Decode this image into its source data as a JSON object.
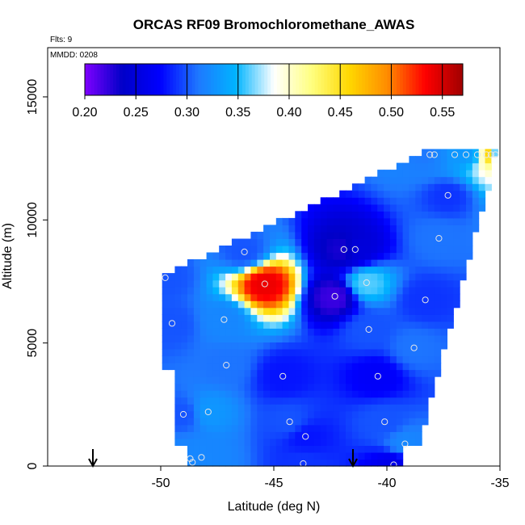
{
  "chart_data": {
    "type": "heatmap",
    "title": "ORCAS RF09 Bromochloromethane_AWAS",
    "xlabel": "Latitude (deg N)",
    "ylabel": "Altitude (m)",
    "subtitle_flights": "Flts: 9",
    "subtitle_date": "MMDD: 0208",
    "xlim": [
      -55,
      -35
    ],
    "ylim": [
      0,
      17000
    ],
    "xticks": [
      -50,
      -45,
      -40,
      -35
    ],
    "xtick_labels": [
      "-50",
      "-45",
      "-40",
      "-35"
    ],
    "yticks": [
      0,
      5000,
      10000,
      15000
    ],
    "ytick_labels": [
      "0",
      "5000",
      "10000",
      "15000"
    ],
    "colorbar": {
      "min": 0.2,
      "max": 0.57,
      "ticks": [
        0.2,
        0.25,
        0.3,
        0.35,
        0.4,
        0.45,
        0.5,
        0.55
      ],
      "tick_labels": [
        "0.20",
        "0.25",
        "0.30",
        "0.35",
        "0.40",
        "0.45",
        "0.50",
        "0.55"
      ],
      "colors": [
        "#7f00ff",
        "#0000c8",
        "#0000ff",
        "#1e78ff",
        "#00b4ff",
        "#ffffff",
        "#ffff80",
        "#ffd700",
        "#ff8c00",
        "#ff0000",
        "#a00000"
      ]
    },
    "grid": false,
    "sample_points": [
      {
        "x": -49.8,
        "y": 7650,
        "v": 0.3
      },
      {
        "x": -49.5,
        "y": 5800,
        "v": 0.3
      },
      {
        "x": -49.0,
        "y": 2100,
        "v": 0.3
      },
      {
        "x": -48.7,
        "y": 300,
        "v": 0.32
      },
      {
        "x": -48.6,
        "y": 150,
        "v": 0.32
      },
      {
        "x": -48.2,
        "y": 350,
        "v": 0.32
      },
      {
        "x": -47.9,
        "y": 2200,
        "v": 0.33
      },
      {
        "x": -47.1,
        "y": 4100,
        "v": 0.31
      },
      {
        "x": -47.2,
        "y": 5950,
        "v": 0.32
      },
      {
        "x": -46.3,
        "y": 8700,
        "v": 0.3
      },
      {
        "x": -45.4,
        "y": 7400,
        "v": 0.54
      },
      {
        "x": -44.6,
        "y": 3650,
        "v": 0.28
      },
      {
        "x": -44.3,
        "y": 1800,
        "v": 0.3
      },
      {
        "x": -43.7,
        "y": 100,
        "v": 0.29
      },
      {
        "x": -43.6,
        "y": 1200,
        "v": 0.28
      },
      {
        "x": -42.3,
        "y": 6900,
        "v": 0.22
      },
      {
        "x": -41.9,
        "y": 8800,
        "v": 0.23
      },
      {
        "x": -41.4,
        "y": 8800,
        "v": 0.25
      },
      {
        "x": -40.9,
        "y": 7450,
        "v": 0.36
      },
      {
        "x": -40.8,
        "y": 5550,
        "v": 0.3
      },
      {
        "x": -40.4,
        "y": 3650,
        "v": 0.27
      },
      {
        "x": -40.1,
        "y": 1800,
        "v": 0.3
      },
      {
        "x": -39.7,
        "y": 50,
        "v": 0.26
      },
      {
        "x": -39.2,
        "y": 900,
        "v": 0.32
      },
      {
        "x": -38.8,
        "y": 4800,
        "v": 0.31
      },
      {
        "x": -38.3,
        "y": 6750,
        "v": 0.29
      },
      {
        "x": -37.7,
        "y": 9250,
        "v": 0.31
      },
      {
        "x": -37.3,
        "y": 11000,
        "v": 0.29
      },
      {
        "x": -38.1,
        "y": 12650,
        "v": 0.31
      },
      {
        "x": -37.9,
        "y": 12650,
        "v": 0.32
      },
      {
        "x": -37.0,
        "y": 12650,
        "v": 0.33
      },
      {
        "x": -36.5,
        "y": 12650,
        "v": 0.33
      },
      {
        "x": -36.0,
        "y": 12650,
        "v": 0.34
      },
      {
        "x": -35.6,
        "y": 12650,
        "v": 0.45
      },
      {
        "x": -35.4,
        "y": 12650,
        "v": 0.5
      },
      {
        "x": -35.2,
        "y": 12650,
        "v": 0.3
      }
    ],
    "markers": [
      {
        "x": -53.0,
        "label": "arrow"
      },
      {
        "x": -41.5,
        "label": "arrow"
      }
    ]
  }
}
